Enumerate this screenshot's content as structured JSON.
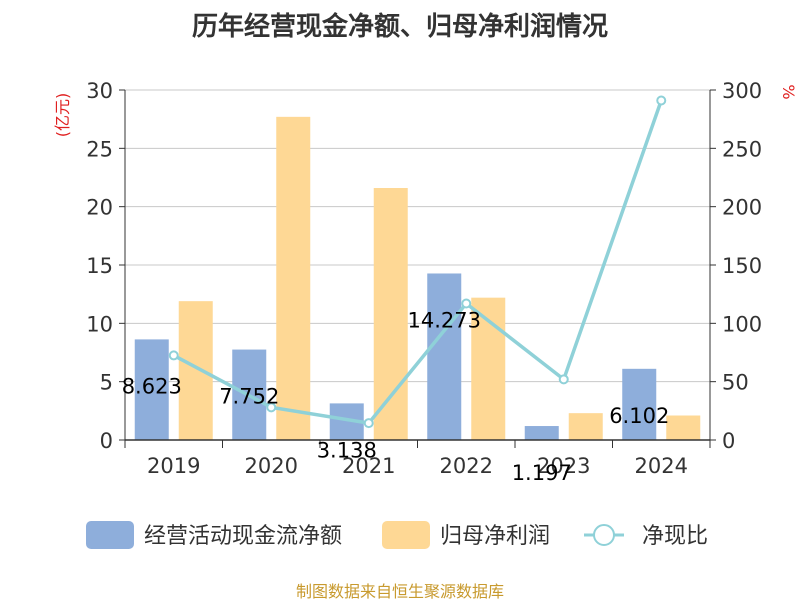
{
  "chart_data": {
    "type": "bar",
    "title": "历年经营现金净额、归母净利润情况",
    "categories": [
      "2019",
      "2020",
      "2021",
      "2022",
      "2023",
      "2024"
    ],
    "series": [
      {
        "name": "经营活动现金流净额",
        "type": "bar",
        "axis": "left",
        "values": [
          8.623,
          7.752,
          3.138,
          14.273,
          1.197,
          6.102
        ],
        "data_labels": [
          "8.623",
          "7.752",
          "3.138",
          "14.273",
          "1.197",
          "6.102"
        ],
        "color": "#8eaedb"
      },
      {
        "name": "归母净利润",
        "type": "bar",
        "axis": "left",
        "values": [
          11.9,
          27.7,
          21.6,
          12.2,
          2.3,
          2.1
        ],
        "color": "#fed895"
      },
      {
        "name": "净现比",
        "type": "line",
        "axis": "right",
        "values": [
          72.5,
          28.0,
          14.5,
          117.0,
          52.0,
          291.0
        ],
        "color": "#8fd1d8"
      }
    ],
    "ylabel_left": "(亿元)",
    "ylabel_right": "%",
    "ylim_left": [
      0,
      30
    ],
    "ylim_right": [
      0,
      300
    ],
    "yticks_left": [
      "0",
      "5",
      "10",
      "15",
      "20",
      "25",
      "30"
    ],
    "yticks_right": [
      "0",
      "50",
      "100",
      "150",
      "200",
      "250",
      "300"
    ],
    "grid": true,
    "legend_position": "bottom"
  },
  "source_note": "制图数据来自恒生聚源数据库"
}
